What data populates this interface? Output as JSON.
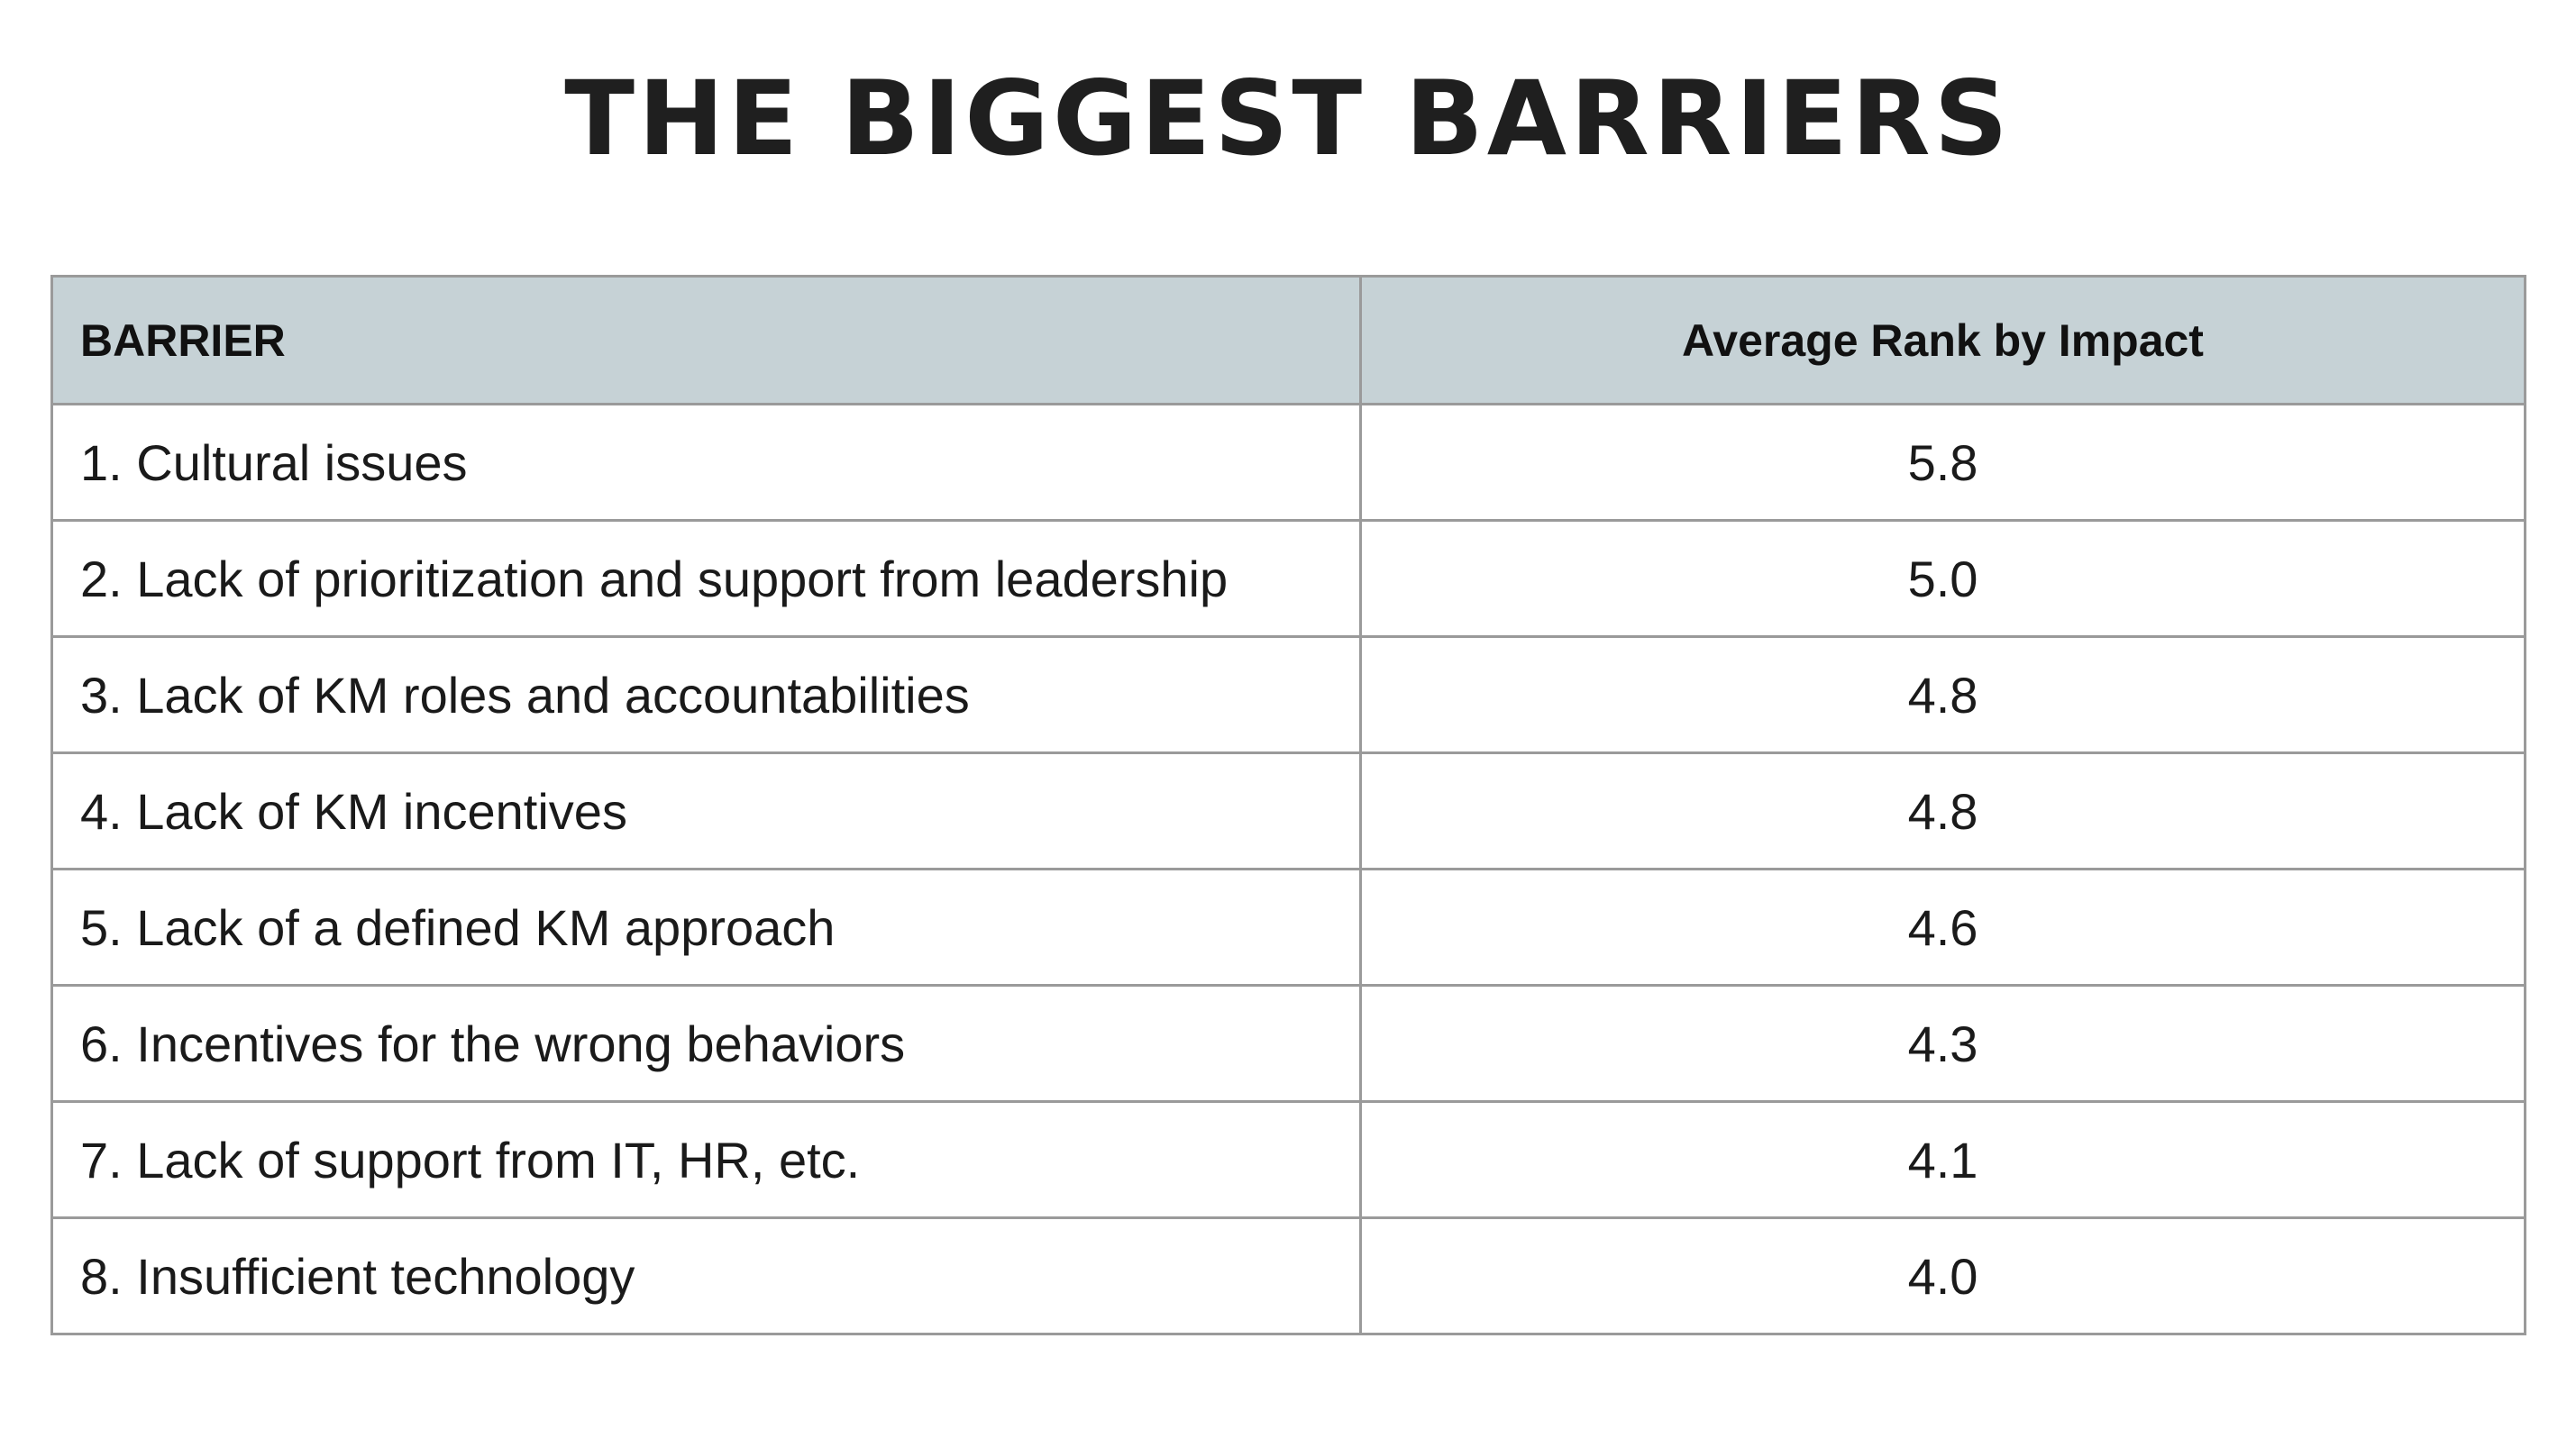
{
  "title": "THE BIGGEST BARRIERS",
  "table": {
    "headers": {
      "barrier": "BARRIER",
      "rank": "Average Rank by Impact"
    },
    "rows": [
      {
        "barrier": "1. Cultural issues",
        "rank": "5.8"
      },
      {
        "barrier": "2. Lack of prioritization and support from leadership",
        "rank": "5.0"
      },
      {
        "barrier": "3. Lack of KM roles and accountabilities",
        "rank": "4.8"
      },
      {
        "barrier": "4. Lack of KM incentives",
        "rank": "4.8"
      },
      {
        "barrier": "5. Lack of a defined KM approach",
        "rank": "4.6"
      },
      {
        "barrier": "6. Incentives for the wrong behaviors",
        "rank": "4.3"
      },
      {
        "barrier": "7. Lack of support from IT, HR, etc.",
        "rank": "4.1"
      },
      {
        "barrier": "8. Insufficient technology",
        "rank": "4.0"
      }
    ]
  },
  "colors": {
    "header_bg": "#c6d2d6",
    "border": "#9a9a9a",
    "text": "#1f1f1f"
  }
}
